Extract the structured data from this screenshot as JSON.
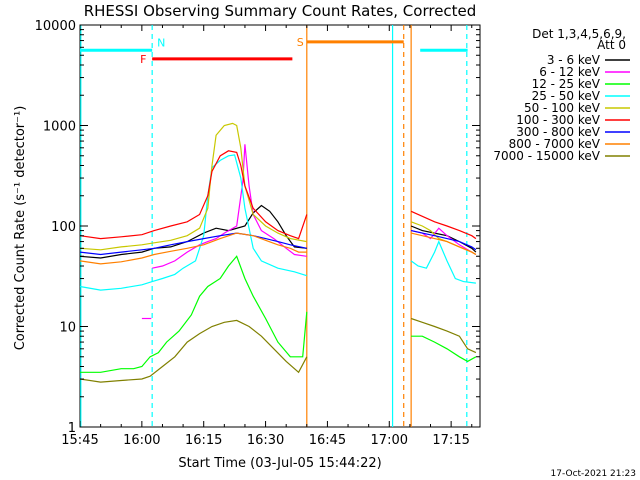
{
  "chart_data": {
    "type": "line",
    "title": "RHESSI Observing Summary Count Rates, Corrected",
    "xlabel": "Start Time (03-Jul-05 15:44:22)",
    "ylabel": "Corrected Count Rate (s⁻¹ detector⁻¹)",
    "y_scale": "log",
    "ylim": [
      1,
      10000
    ],
    "x_range_minutes_after_1545": [
      0,
      97
    ],
    "x_ticks": [
      {
        "minute": 0,
        "label": "15:45"
      },
      {
        "minute": 15,
        "label": "16:00"
      },
      {
        "minute": 30,
        "label": "16:15"
      },
      {
        "minute": 45,
        "label": "16:30"
      },
      {
        "minute": 60,
        "label": "16:45"
      },
      {
        "minute": 75,
        "label": "17:00"
      },
      {
        "minute": 90,
        "label": "17:15"
      }
    ],
    "y_ticks": [
      {
        "value": 1,
        "label": "1"
      },
      {
        "value": 10,
        "label": "10"
      },
      {
        "value": 100,
        "label": "100"
      },
      {
        "value": 1000,
        "label": "1000"
      },
      {
        "value": 10000,
        "label": "10000"
      }
    ],
    "legend_header": [
      "Det 1,3,4,5,6,9,",
      "Att 0"
    ],
    "legend_placement": "right",
    "flags": [
      {
        "label": "N",
        "color": "#00ffff",
        "segments": [
          [
            0,
            17.5
          ],
          [
            82.5,
            94
          ]
        ],
        "y": 5600
      },
      {
        "label": "F",
        "color": "#ff0000",
        "segments": [
          [
            17.5,
            51.5
          ]
        ],
        "y": 4600
      },
      {
        "label": "S",
        "color": "#ff8000",
        "segments": [
          [
            55,
            78.5
          ]
        ],
        "y": 6800
      }
    ],
    "vertical_lines": [
      {
        "minute": 0.2,
        "color": "#00ffff",
        "style": "solid"
      },
      {
        "minute": 17.5,
        "color": "#00ffff",
        "style": "dashed"
      },
      {
        "minute": 55,
        "color": "#ff8000",
        "style": "solid"
      },
      {
        "minute": 75.8,
        "color": "#00ffff",
        "style": "solid"
      },
      {
        "minute": 78.5,
        "color": "#ff8000",
        "style": "dashed"
      },
      {
        "minute": 80.3,
        "color": "#ff8000",
        "style": "solid"
      },
      {
        "minute": 93.8,
        "color": "#00ffff",
        "style": "dashed"
      }
    ],
    "series": [
      {
        "name": "3 - 6 keV",
        "color": "#000000",
        "segments": [
          [
            [
              0,
              50
            ],
            [
              5,
              48
            ],
            [
              10,
              52
            ],
            [
              15,
              55
            ],
            [
              18,
              60
            ],
            [
              22,
              62
            ],
            [
              26,
              70
            ],
            [
              30,
              85
            ],
            [
              33,
              95
            ],
            [
              36,
              90
            ],
            [
              40,
              100
            ],
            [
              42,
              135
            ],
            [
              44,
              160
            ],
            [
              46,
              140
            ],
            [
              48,
              110
            ],
            [
              50,
              80
            ],
            [
              52,
              62
            ],
            [
              55,
              60
            ]
          ],
          [
            [
              80.3,
              100
            ],
            [
              83,
              90
            ],
            [
              86,
              85
            ],
            [
              89,
              80
            ],
            [
              92,
              70
            ],
            [
              95,
              60
            ],
            [
              96,
              55
            ]
          ]
        ]
      },
      {
        "name": "6 - 12 keV",
        "color": "#ff00ff",
        "segments": [
          [
            [
              15,
              12
            ],
            [
              17.3,
              12
            ]
          ],
          [
            [
              17.5,
              38
            ],
            [
              20,
              40
            ],
            [
              23,
              45
            ],
            [
              26,
              55
            ],
            [
              29,
              65
            ],
            [
              31,
              70
            ],
            [
              33,
              75
            ],
            [
              35,
              85
            ],
            [
              38,
              100
            ],
            [
              39.5,
              280
            ],
            [
              40,
              650
            ],
            [
              41,
              250
            ],
            [
              42,
              130
            ],
            [
              44,
              90
            ],
            [
              47,
              75
            ],
            [
              50,
              60
            ],
            [
              52,
              52
            ],
            [
              55,
              50
            ]
          ],
          [
            [
              80.3,
              90
            ],
            [
              83,
              85
            ],
            [
              85,
              75
            ],
            [
              87,
              95
            ],
            [
              89,
              80
            ],
            [
              92,
              65
            ],
            [
              95,
              55
            ],
            [
              96,
              52
            ]
          ]
        ]
      },
      {
        "name": "12 - 25 keV",
        "color": "#00ff00",
        "segments": [
          [
            [
              0,
              3.5
            ],
            [
              5,
              3.5
            ],
            [
              10,
              3.8
            ],
            [
              13,
              3.8
            ],
            [
              15,
              4
            ],
            [
              17,
              5
            ],
            [
              19,
              5.5
            ],
            [
              21,
              7
            ],
            [
              24,
              9
            ],
            [
              27,
              13
            ],
            [
              29,
              20
            ],
            [
              31,
              25
            ],
            [
              34,
              30
            ],
            [
              36,
              40
            ],
            [
              38,
              50
            ],
            [
              40,
              30
            ],
            [
              42,
              20
            ],
            [
              45,
              12
            ],
            [
              48,
              7
            ],
            [
              51,
              5
            ],
            [
              54,
              5
            ],
            [
              55,
              14
            ]
          ],
          [
            [
              80.3,
              8
            ],
            [
              83,
              8
            ],
            [
              86,
              7
            ],
            [
              89,
              6
            ],
            [
              92,
              5
            ],
            [
              94,
              4.5
            ],
            [
              96,
              5
            ]
          ]
        ]
      },
      {
        "name": "25 - 50 keV",
        "color": "#00ffff",
        "segments": [
          [
            [
              0,
              25
            ],
            [
              5,
              23
            ],
            [
              10,
              24
            ],
            [
              15,
              26
            ],
            [
              17.5,
              28
            ],
            [
              20,
              30
            ],
            [
              23,
              33
            ],
            [
              25,
              38
            ],
            [
              28,
              45
            ],
            [
              30,
              80
            ],
            [
              31,
              200
            ],
            [
              32,
              380
            ],
            [
              34,
              450
            ],
            [
              36,
              500
            ],
            [
              37.5,
              510
            ],
            [
              39,
              300
            ],
            [
              40,
              150
            ],
            [
              42,
              60
            ],
            [
              44,
              45
            ],
            [
              48,
              38
            ],
            [
              52,
              35
            ],
            [
              55,
              32
            ]
          ],
          [
            [
              80.3,
              45
            ],
            [
              82,
              40
            ],
            [
              84,
              38
            ],
            [
              86,
              55
            ],
            [
              87,
              70
            ],
            [
              89,
              45
            ],
            [
              91,
              30
            ],
            [
              93,
              28
            ],
            [
              96,
              27
            ]
          ]
        ]
      },
      {
        "name": "50 - 100 keV",
        "color": "#c8c800",
        "segments": [
          [
            [
              0,
              60
            ],
            [
              5,
              58
            ],
            [
              10,
              62
            ],
            [
              15,
              65
            ],
            [
              18,
              68
            ],
            [
              22,
              72
            ],
            [
              26,
              80
            ],
            [
              29,
              95
            ],
            [
              31,
              150
            ],
            [
              32,
              400
            ],
            [
              33,
              800
            ],
            [
              35,
              1000
            ],
            [
              37,
              1050
            ],
            [
              38,
              1000
            ],
            [
              39,
              600
            ],
            [
              40,
              250
            ],
            [
              42,
              130
            ],
            [
              45,
              100
            ],
            [
              48,
              85
            ],
            [
              51,
              75
            ],
            [
              55,
              70
            ]
          ],
          [
            [
              80.3,
              110
            ],
            [
              83,
              100
            ],
            [
              85,
              90
            ],
            [
              87,
              75
            ],
            [
              89,
              70
            ],
            [
              92,
              62
            ],
            [
              95,
              55
            ],
            [
              96,
              52
            ]
          ]
        ]
      },
      {
        "name": "100 - 300 keV",
        "color": "#ff0000",
        "segments": [
          [
            [
              0,
              80
            ],
            [
              5,
              75
            ],
            [
              10,
              78
            ],
            [
              15,
              82
            ],
            [
              18,
              90
            ],
            [
              22,
              100
            ],
            [
              26,
              110
            ],
            [
              29,
              130
            ],
            [
              31,
              200
            ],
            [
              32,
              350
            ],
            [
              34,
              500
            ],
            [
              36,
              560
            ],
            [
              38,
              540
            ],
            [
              39,
              400
            ],
            [
              40,
              250
            ],
            [
              42,
              150
            ],
            [
              45,
              110
            ],
            [
              48,
              90
            ],
            [
              51,
              80
            ],
            [
              53,
              75
            ],
            [
              55,
              130
            ]
          ],
          [
            [
              80.3,
              140
            ],
            [
              83,
              125
            ],
            [
              86,
              110
            ],
            [
              89,
              100
            ],
            [
              92,
              90
            ],
            [
              95,
              80
            ],
            [
              96,
              75
            ]
          ]
        ]
      },
      {
        "name": "300 - 800 keV",
        "color": "#0000ff",
        "segments": [
          [
            [
              0,
              55
            ],
            [
              5,
              52
            ],
            [
              10,
              55
            ],
            [
              15,
              58
            ],
            [
              18,
              60
            ],
            [
              22,
              65
            ],
            [
              26,
              70
            ],
            [
              30,
              75
            ],
            [
              34,
              80
            ],
            [
              38,
              85
            ],
            [
              42,
              80
            ],
            [
              45,
              75
            ],
            [
              48,
              70
            ],
            [
              51,
              65
            ],
            [
              55,
              60
            ]
          ],
          [
            [
              80.3,
              90
            ],
            [
              83,
              85
            ],
            [
              86,
              80
            ],
            [
              89,
              75
            ],
            [
              92,
              70
            ],
            [
              95,
              62
            ],
            [
              96,
              58
            ]
          ]
        ]
      },
      {
        "name": "800 - 7000 keV",
        "color": "#ff8000",
        "segments": [
          [
            [
              0,
              45
            ],
            [
              5,
              42
            ],
            [
              10,
              44
            ],
            [
              15,
              48
            ],
            [
              18,
              52
            ],
            [
              22,
              56
            ],
            [
              26,
              60
            ],
            [
              30,
              65
            ],
            [
              34,
              75
            ],
            [
              38,
              85
            ],
            [
              42,
              80
            ],
            [
              45,
              72
            ],
            [
              48,
              65
            ],
            [
              51,
              60
            ],
            [
              53,
              55
            ],
            [
              55,
              55
            ]
          ],
          [
            [
              80.3,
              85
            ],
            [
              83,
              80
            ],
            [
              86,
              75
            ],
            [
              89,
              70
            ],
            [
              92,
              62
            ],
            [
              95,
              55
            ],
            [
              96,
              52
            ]
          ]
        ]
      },
      {
        "name": "7000 - 15000 keV",
        "color": "#808000",
        "segments": [
          [
            [
              0,
              3
            ],
            [
              5,
              2.8
            ],
            [
              10,
              2.9
            ],
            [
              15,
              3
            ],
            [
              17,
              3.2
            ],
            [
              20,
              4
            ],
            [
              23,
              5
            ],
            [
              26,
              7
            ],
            [
              29,
              8.5
            ],
            [
              32,
              10
            ],
            [
              35,
              11
            ],
            [
              38,
              11.5
            ],
            [
              41,
              10
            ],
            [
              44,
              8
            ],
            [
              47,
              6
            ],
            [
              50,
              4.5
            ],
            [
              53,
              3.5
            ],
            [
              55,
              5
            ]
          ],
          [
            [
              80.3,
              12
            ],
            [
              83,
              11
            ],
            [
              86,
              10
            ],
            [
              89,
              9
            ],
            [
              92,
              8
            ],
            [
              94,
              6
            ],
            [
              96,
              5.5
            ]
          ]
        ]
      }
    ]
  },
  "footer": {
    "timestamp": "17-Oct-2021 21:23"
  }
}
